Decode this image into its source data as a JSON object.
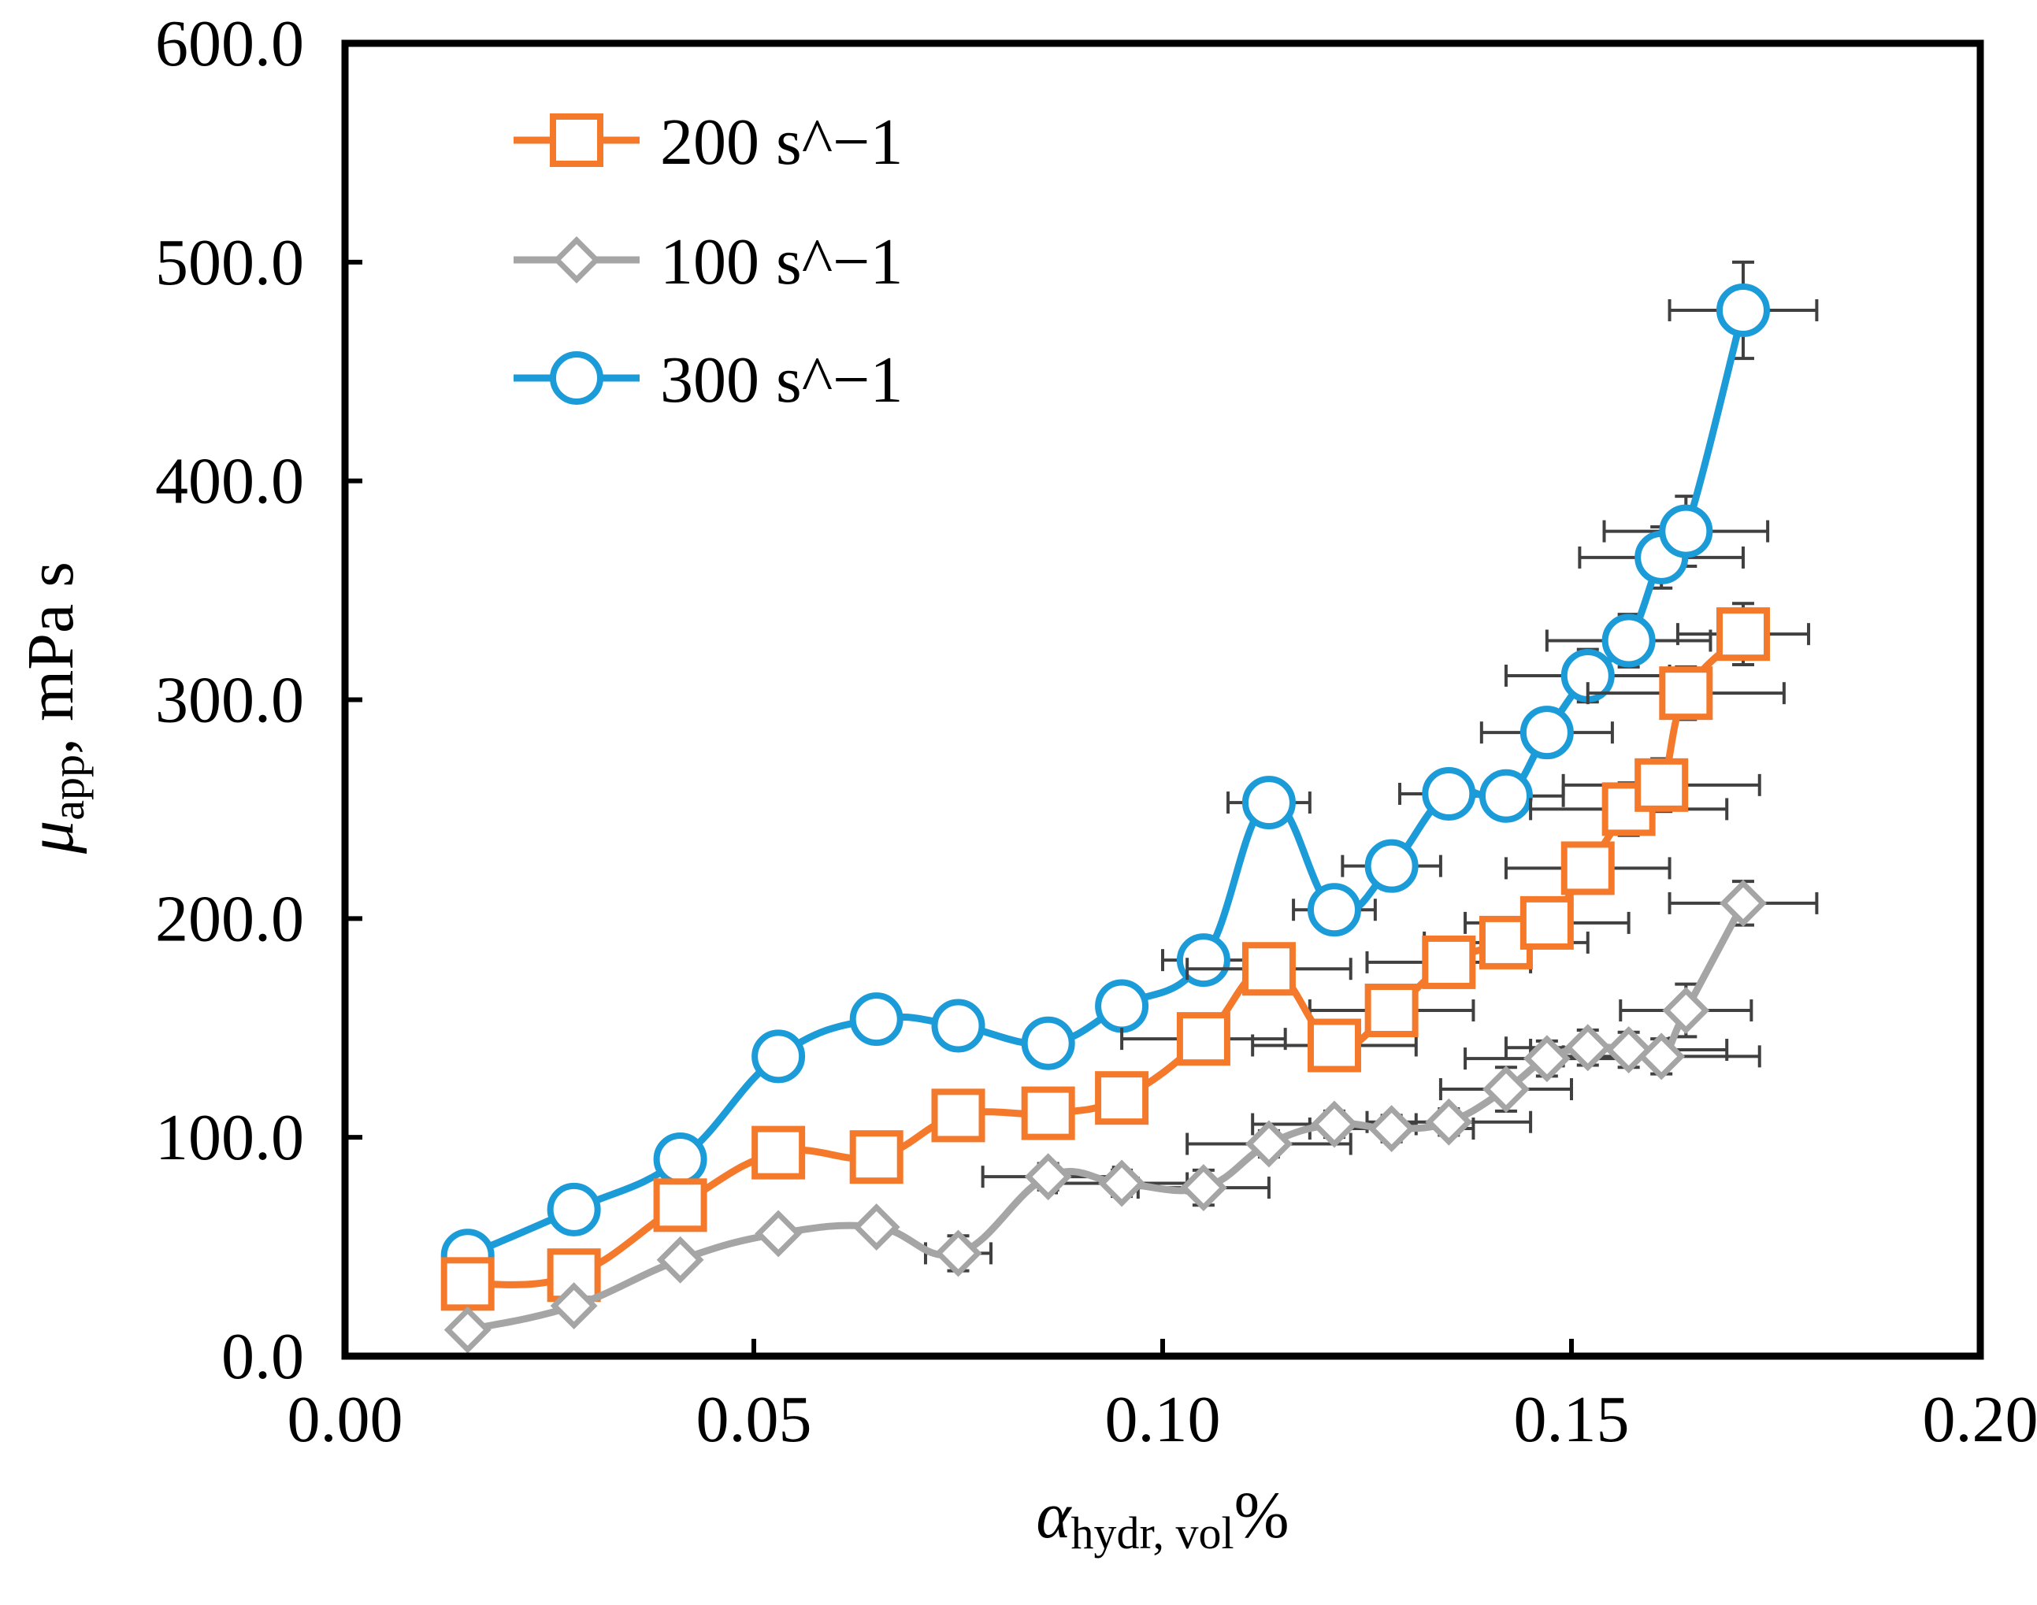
{
  "chart_data": {
    "type": "line",
    "title": "",
    "xlabel": {
      "symbol": "α",
      "subscript": "hydr, vol",
      "suffix": "%"
    },
    "ylabel": {
      "symbol": "μ",
      "subscript": "app",
      "suffix": ", mPa s"
    },
    "xlim": [
      0.0,
      0.2
    ],
    "ylim": [
      0.0,
      600.0
    ],
    "xticks": [
      "0.00",
      "0.05",
      "0.10",
      "0.15",
      "0.20"
    ],
    "yticks": [
      "0.0",
      "100.0",
      "200.0",
      "300.0",
      "400.0",
      "500.0",
      "600.0"
    ],
    "legend_position": "top-left",
    "grid": false,
    "x": [
      0.015,
      0.028,
      0.041,
      0.053,
      0.065,
      0.075,
      0.086,
      0.095,
      0.105,
      0.113,
      0.121,
      0.128,
      0.135,
      0.142,
      0.147,
      0.152,
      0.157,
      0.161,
      0.164,
      0.171
    ],
    "series": [
      {
        "name": "200 s^−1",
        "color": "#F4792B",
        "marker": "square",
        "values": [
          33,
          37,
          69,
          93,
          91,
          110,
          111,
          118,
          145,
          177,
          142,
          158,
          180,
          189,
          198,
          223,
          250,
          261,
          303,
          330
        ],
        "x_error": [
          0,
          0,
          0,
          0,
          0,
          0,
          0,
          0,
          0.01,
          0.01,
          0.01,
          0.01,
          0.01,
          0.01,
          0.01,
          0.01,
          0.012,
          0.012,
          0.012,
          0.008
        ],
        "y_error": [
          0,
          0,
          0,
          0,
          0,
          0,
          0,
          0,
          8,
          8,
          8,
          8,
          8,
          8,
          10,
          10,
          12,
          12,
          12,
          14
        ]
      },
      {
        "name": "100 s^−1",
        "color": "#A5A5A5",
        "marker": "diamond",
        "values": [
          12,
          23,
          44,
          56,
          59,
          47,
          82,
          79,
          77,
          97,
          106,
          104,
          107,
          122,
          136,
          141,
          140,
          137,
          158,
          207
        ],
        "x_error": [
          0,
          0,
          0,
          0,
          0,
          0.004,
          0.008,
          0.008,
          0.008,
          0.01,
          0.01,
          0.01,
          0.01,
          0.008,
          0.01,
          0.01,
          0.012,
          0.012,
          0.008,
          0.009
        ],
        "y_error": [
          0,
          0,
          0,
          0,
          0,
          8,
          6,
          6,
          8,
          6,
          6,
          6,
          6,
          10,
          8,
          8,
          8,
          8,
          12,
          10
        ]
      },
      {
        "name": "300 s^−1",
        "color": "#1B9BD7",
        "marker": "circle",
        "values": [
          46,
          67,
          90,
          137,
          154,
          151,
          143,
          160,
          181,
          253,
          204,
          224,
          257,
          256,
          285,
          311,
          327,
          365,
          377,
          478
        ],
        "x_error": [
          0,
          0,
          0,
          0,
          0,
          0,
          0,
          0,
          0.005,
          0.005,
          0.005,
          0.006,
          0.006,
          0.007,
          0.008,
          0.01,
          0.01,
          0.01,
          0.01,
          0.009
        ],
        "y_error": [
          0,
          0,
          0,
          0,
          0,
          0,
          0,
          0,
          6,
          10,
          6,
          8,
          10,
          8,
          8,
          12,
          12,
          14,
          16,
          22
        ]
      }
    ],
    "error_bar_color": "#404040"
  }
}
